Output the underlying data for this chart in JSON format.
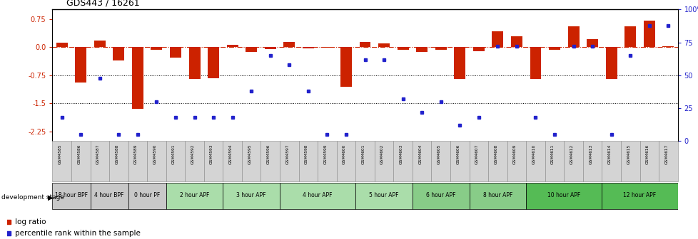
{
  "title": "GDS443 / 16261",
  "samples": [
    "GSM4585",
    "GSM4586",
    "GSM4587",
    "GSM4588",
    "GSM4589",
    "GSM4590",
    "GSM4591",
    "GSM4592",
    "GSM4593",
    "GSM4594",
    "GSM4595",
    "GSM4596",
    "GSM4597",
    "GSM4598",
    "GSM4599",
    "GSM4600",
    "GSM4601",
    "GSM4602",
    "GSM4603",
    "GSM4604",
    "GSM4605",
    "GSM4606",
    "GSM4607",
    "GSM4608",
    "GSM4609",
    "GSM4610",
    "GSM4611",
    "GSM4612",
    "GSM4613",
    "GSM4614",
    "GSM4615",
    "GSM4616",
    "GSM4617"
  ],
  "log_ratio": [
    0.12,
    -0.95,
    0.18,
    -0.35,
    -1.65,
    -0.08,
    -0.28,
    -0.85,
    -0.82,
    0.07,
    -0.12,
    -0.05,
    0.13,
    -0.03,
    -0.02,
    -1.05,
    0.13,
    0.1,
    -0.08,
    -0.13,
    -0.08,
    -0.85,
    -0.1,
    0.42,
    0.28,
    -0.85,
    -0.08,
    0.55,
    0.22,
    -0.85,
    0.55,
    0.7,
    0.02
  ],
  "percentile": [
    18,
    5,
    48,
    5,
    5,
    30,
    18,
    18,
    18,
    18,
    38,
    65,
    58,
    38,
    5,
    5,
    62,
    62,
    32,
    22,
    30,
    12,
    18,
    72,
    72,
    18,
    5,
    72,
    72,
    5,
    65,
    88,
    88
  ],
  "stage_groups": [
    {
      "label": "18 hour BPF",
      "start": 0,
      "end": 2,
      "color": "#c8c8c8"
    },
    {
      "label": "4 hour BPF",
      "start": 2,
      "end": 4,
      "color": "#c8c8c8"
    },
    {
      "label": "0 hour PF",
      "start": 4,
      "end": 6,
      "color": "#c8c8c8"
    },
    {
      "label": "2 hour APF",
      "start": 6,
      "end": 9,
      "color": "#aaddaa"
    },
    {
      "label": "3 hour APF",
      "start": 9,
      "end": 12,
      "color": "#aaddaa"
    },
    {
      "label": "4 hour APF",
      "start": 12,
      "end": 16,
      "color": "#aaddaa"
    },
    {
      "label": "5 hour APF",
      "start": 16,
      "end": 19,
      "color": "#aaddaa"
    },
    {
      "label": "6 hour APF",
      "start": 19,
      "end": 22,
      "color": "#88cc88"
    },
    {
      "label": "8 hour APF",
      "start": 22,
      "end": 25,
      "color": "#88cc88"
    },
    {
      "label": "10 hour APF",
      "start": 25,
      "end": 29,
      "color": "#55bb55"
    },
    {
      "label": "12 hour APF",
      "start": 29,
      "end": 33,
      "color": "#55bb55"
    }
  ],
  "bar_color": "#cc2200",
  "dot_color": "#2222cc",
  "ylim_left": [
    -2.5,
    1.0
  ],
  "yticks_left": [
    -2.25,
    -1.5,
    -0.75,
    0.0,
    0.75
  ],
  "yticks_right": [
    0,
    25,
    50,
    75,
    100
  ],
  "hline_y": 0.0,
  "dotted_lines": [
    -0.75,
    -1.5
  ],
  "right_axis_color": "#2222cc",
  "left_axis_color": "#cc2200"
}
